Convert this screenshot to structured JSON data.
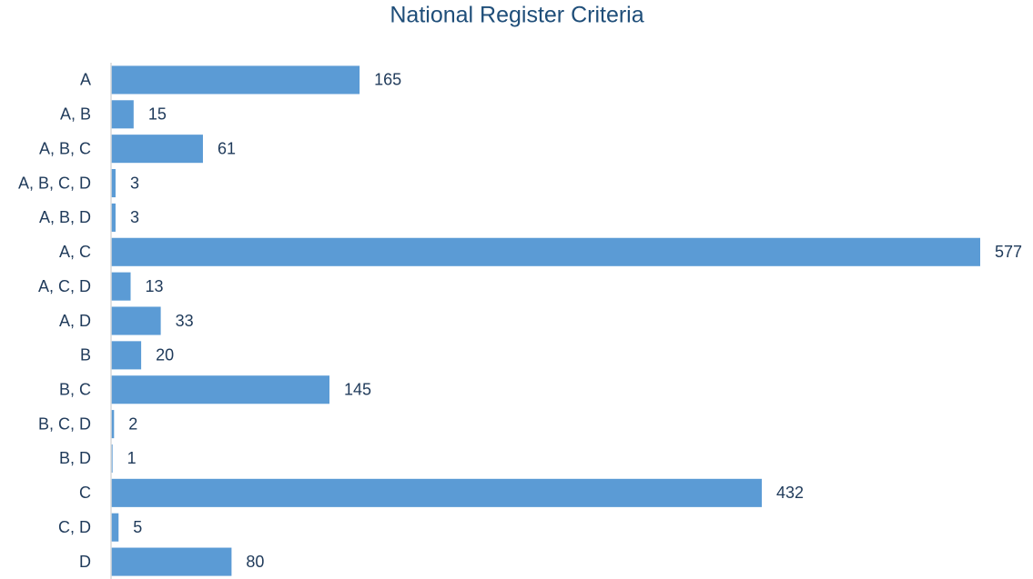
{
  "chart_data": {
    "type": "bar",
    "orientation": "horizontal",
    "title": "National Register Criteria",
    "categories": [
      "A",
      "A, B",
      "A, B, C",
      "A, B, C, D",
      "A, B, D",
      "A, C",
      "A, C, D",
      "A, D",
      "B",
      "B, C",
      "B, C, D",
      "B, D",
      "C",
      "C, D",
      "D"
    ],
    "values": [
      165,
      15,
      61,
      3,
      3,
      577,
      13,
      33,
      20,
      145,
      2,
      1,
      432,
      5,
      80
    ],
    "color": "#5b9bd5"
  }
}
